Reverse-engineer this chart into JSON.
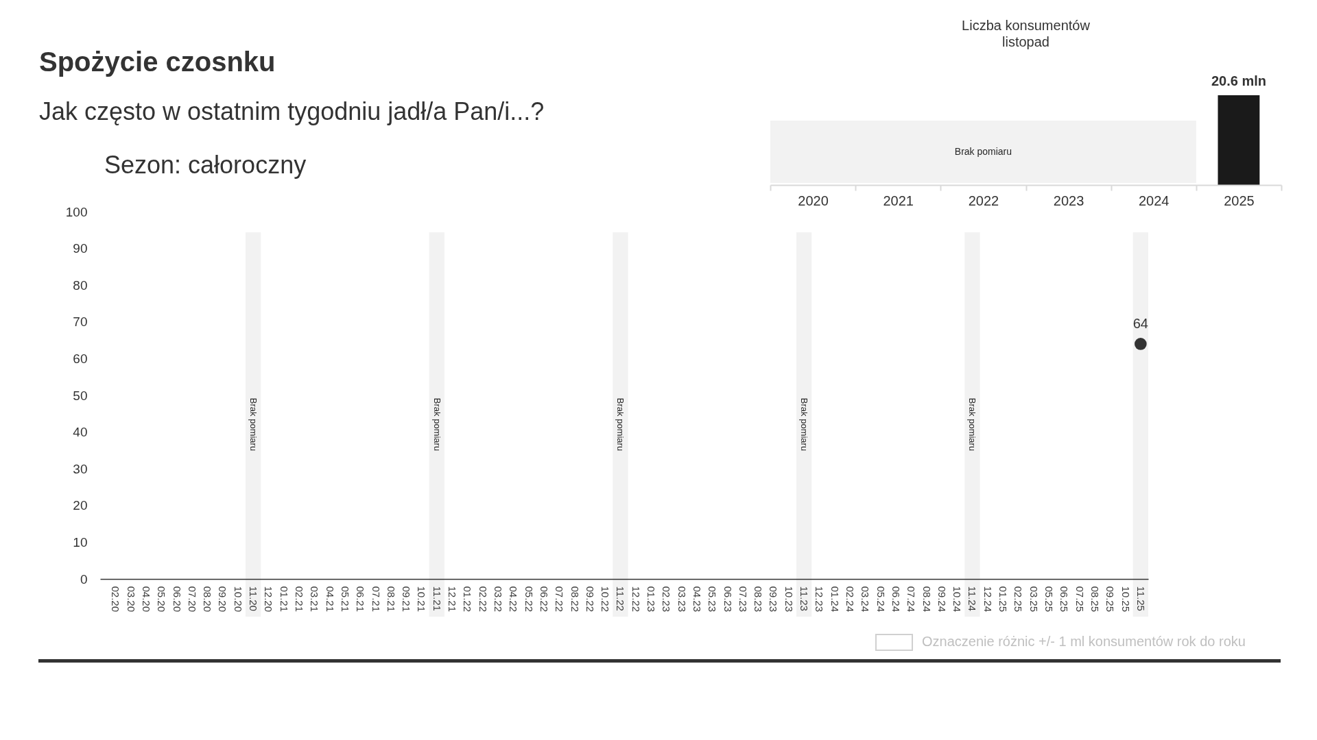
{
  "chart_data": [
    {
      "type": "scatter",
      "title": "Sezon: całoroczny",
      "annotations": [
        "Spożycie czosnku",
        "Jak często w ostatnim tygodniu jadł/a Pan/i...?",
        "Oznaczenie różnic +/- 1 ml konsumentów rok do roku"
      ],
      "categories": [
        "02.20",
        "03.20",
        "04.20",
        "05.20",
        "06.20",
        "07.20",
        "08.20",
        "09.20",
        "10.20",
        "11.20",
        "12.20",
        "01.21",
        "02.21",
        "03.21",
        "04.21",
        "05.21",
        "06.21",
        "07.21",
        "08.21",
        "09.21",
        "10.21",
        "11.21",
        "12.21",
        "01.22",
        "02.22",
        "03.22",
        "04.22",
        "05.22",
        "06.22",
        "07.22",
        "08.22",
        "09.22",
        "10.22",
        "11.22",
        "12.22",
        "01.23",
        "02.23",
        "03.23",
        "04.23",
        "05.23",
        "06.23",
        "07.23",
        "08.23",
        "09.23",
        "10.23",
        "11.23",
        "12.23",
        "01.24",
        "02.24",
        "03.24",
        "05.24",
        "06.24",
        "07.24",
        "08.24",
        "09.24",
        "10.24",
        "11.24",
        "12.24",
        "01.25",
        "02.25",
        "03.25",
        "05.25",
        "06.25",
        "07.25",
        "08.25",
        "09.25",
        "10.25",
        "11.25"
      ],
      "values": [
        null,
        null,
        null,
        null,
        null,
        null,
        null,
        null,
        null,
        null,
        null,
        null,
        null,
        null,
        null,
        null,
        null,
        null,
        null,
        null,
        null,
        null,
        null,
        null,
        null,
        null,
        null,
        null,
        null,
        null,
        null,
        null,
        null,
        null,
        null,
        null,
        null,
        null,
        null,
        null,
        null,
        null,
        null,
        null,
        null,
        null,
        null,
        null,
        null,
        null,
        null,
        null,
        null,
        null,
        null,
        null,
        null,
        null,
        null,
        null,
        null,
        null,
        null,
        null,
        null,
        null,
        null,
        64
      ],
      "color": "#333333",
      "marker": "circle",
      "data_labels": true,
      "ylim": [
        0,
        100
      ],
      "yticks": [
        0,
        10,
        20,
        30,
        40,
        50,
        60,
        70,
        80,
        90,
        100
      ],
      "bands": [
        {
          "axis": "x",
          "from": "11.20",
          "to": "11.20",
          "label": "Brak pomiaru",
          "color": "#f2f2f2"
        },
        {
          "axis": "x",
          "from": "11.21",
          "to": "11.21",
          "label": "Brak pomiaru",
          "color": "#f2f2f2"
        },
        {
          "axis": "x",
          "from": "11.22",
          "to": "11.22",
          "label": "Brak pomiaru",
          "color": "#f2f2f2"
        },
        {
          "axis": "x",
          "from": "11.23",
          "to": "11.23",
          "label": "Brak pomiaru",
          "color": "#f2f2f2"
        },
        {
          "axis": "x",
          "from": "11.24",
          "to": "11.24",
          "label": "Brak pomiaru",
          "color": "#f2f2f2"
        },
        {
          "axis": "x",
          "from": "11.25",
          "to": "11.25",
          "color": "#f2f2f2"
        }
      ]
    },
    {
      "type": "bar",
      "title": "Liczba konsumentów",
      "subtitle": "listopad",
      "categories": [
        "2020",
        "2021",
        "2022",
        "2023",
        "2024",
        "2025"
      ],
      "values": [
        null,
        null,
        null,
        null,
        null,
        20.6
      ],
      "value_labels": [
        null,
        null,
        null,
        null,
        null,
        "20.6 mln"
      ],
      "color": "#1a1a1a",
      "tick_labels": "x",
      "bands": [
        {
          "axis": "x",
          "from": "2020",
          "to": "2024",
          "label": "Brak pomiaru",
          "color": "#f2f2f2"
        }
      ]
    }
  ]
}
